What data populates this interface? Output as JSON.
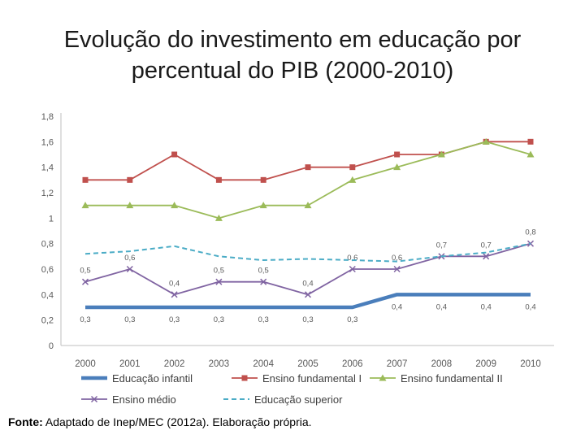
{
  "chart_data": {
    "type": "line",
    "title_line1": "Evolução do investimento em educação por",
    "title_line2": "percentual do PIB (2000-2010)",
    "categories": [
      "2000",
      "2001",
      "2002",
      "2003",
      "2004",
      "2005",
      "2006",
      "2007",
      "2008",
      "2009",
      "2010"
    ],
    "y_ticks": [
      "0",
      "0,2",
      "0,4",
      "0,6",
      "0,8",
      "1",
      "1,2",
      "1,4",
      "1,6",
      "1,8"
    ],
    "ylim": [
      0,
      1.8
    ],
    "grid": false,
    "legend_position": "bottom",
    "series": [
      {
        "name": "Educação infantil",
        "color": "#4a7ebb",
        "style": "thick",
        "values": [
          0.3,
          0.3,
          0.3,
          0.3,
          0.3,
          0.3,
          0.3,
          0.4,
          0.4,
          0.4,
          0.4
        ],
        "labels": [
          "0,3",
          "0,3",
          "0,3",
          "0,3",
          "0,3",
          "0,3",
          "0,3",
          "0,4",
          "0,4",
          "0,4",
          "0,4"
        ]
      },
      {
        "name": "Ensino fundamental I",
        "color": "#c0504d",
        "style": "square",
        "values": [
          1.3,
          1.3,
          1.5,
          1.3,
          1.3,
          1.4,
          1.4,
          1.5,
          1.5,
          1.6,
          1.6
        ]
      },
      {
        "name": "Ensino fundamental II",
        "color": "#9bbb59",
        "style": "triangle",
        "values": [
          1.1,
          1.1,
          1.1,
          1.0,
          1.1,
          1.1,
          1.3,
          1.4,
          1.5,
          1.6,
          1.5
        ]
      },
      {
        "name": "Ensino médio",
        "color": "#8064a2",
        "style": "x",
        "values": [
          0.5,
          0.6,
          0.4,
          0.5,
          0.5,
          0.4,
          0.6,
          0.6,
          0.7,
          0.7,
          0.8
        ],
        "labels": [
          "0,5",
          "0,6",
          "0,4",
          "0,5",
          "0,5",
          "0,4",
          "0,6",
          "0,6",
          "0,7",
          "0,7",
          "0,8"
        ]
      },
      {
        "name": "Educação superior",
        "color": "#4bacc6",
        "style": "dashed",
        "values": [
          0.72,
          0.74,
          0.78,
          0.7,
          0.67,
          0.68,
          0.67,
          0.66,
          0.7,
          0.73,
          0.8
        ]
      }
    ]
  },
  "source": {
    "label": "Fonte:",
    "text": " Adaptado de Inep/MEC (2012a). Elaboração própria."
  }
}
